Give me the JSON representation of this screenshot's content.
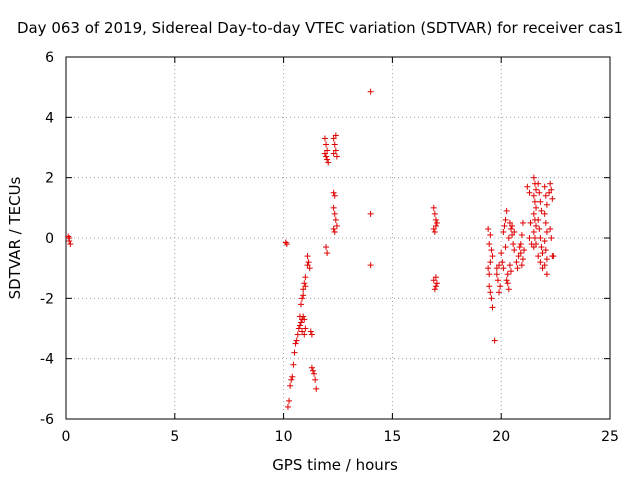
{
  "chart_data": {
    "type": "scatter",
    "title": "Day 063 of 2019, Sidereal Day-to-day VTEC variation (SDTVAR) for receiver cas1",
    "xlabel": "GPS time / hours",
    "ylabel": "SDTVAR / TECUs",
    "xlim": [
      0,
      25
    ],
    "ylim": [
      -6,
      6
    ],
    "xticks": [
      0,
      5,
      10,
      15,
      20,
      25
    ],
    "yticks": [
      -6,
      -4,
      -2,
      0,
      2,
      4,
      6
    ],
    "grid": true,
    "marker": "+",
    "color": "#e00000",
    "series": [
      {
        "name": "SDTVAR",
        "points": [
          [
            0.1,
            0.05
          ],
          [
            0.15,
            -0.1
          ],
          [
            0.2,
            -0.2
          ],
          [
            0.15,
            0.0
          ],
          [
            10.1,
            -0.15
          ],
          [
            10.15,
            -0.2
          ],
          [
            10.2,
            -5.6
          ],
          [
            10.25,
            -5.4
          ],
          [
            10.3,
            -4.9
          ],
          [
            10.35,
            -4.7
          ],
          [
            10.4,
            -4.6
          ],
          [
            10.45,
            -4.2
          ],
          [
            10.5,
            -3.8
          ],
          [
            10.55,
            -3.5
          ],
          [
            10.6,
            -3.4
          ],
          [
            10.65,
            -3.2
          ],
          [
            10.7,
            -3.0
          ],
          [
            10.75,
            -2.9
          ],
          [
            10.8,
            -2.8
          ],
          [
            10.85,
            -2.7
          ],
          [
            10.9,
            -2.6
          ],
          [
            10.95,
            -2.7
          ],
          [
            11.0,
            -3.0
          ],
          [
            10.75,
            -2.6
          ],
          [
            10.85,
            -3.1
          ],
          [
            10.95,
            -3.2
          ],
          [
            10.8,
            -2.2
          ],
          [
            10.85,
            -2.0
          ],
          [
            10.9,
            -1.7
          ],
          [
            10.95,
            -1.5
          ],
          [
            11.0,
            -1.3
          ],
          [
            10.9,
            -1.9
          ],
          [
            11.0,
            -1.6
          ],
          [
            11.1,
            -0.6
          ],
          [
            11.15,
            -0.8
          ],
          [
            11.2,
            -1.0
          ],
          [
            11.1,
            -0.9
          ],
          [
            11.25,
            -3.1
          ],
          [
            11.3,
            -3.2
          ],
          [
            11.3,
            -4.3
          ],
          [
            11.35,
            -4.4
          ],
          [
            11.4,
            -4.5
          ],
          [
            11.45,
            -4.7
          ],
          [
            11.5,
            -5.0
          ],
          [
            11.9,
            3.3
          ],
          [
            11.95,
            3.1
          ],
          [
            12.0,
            2.9
          ],
          [
            11.95,
            2.7
          ],
          [
            12.0,
            2.6
          ],
          [
            12.05,
            2.5
          ],
          [
            11.9,
            2.8
          ],
          [
            11.95,
            -0.3
          ],
          [
            12.0,
            -0.5
          ],
          [
            12.3,
            3.3
          ],
          [
            12.35,
            3.1
          ],
          [
            12.4,
            2.9
          ],
          [
            12.45,
            2.7
          ],
          [
            12.3,
            2.8
          ],
          [
            12.4,
            3.4
          ],
          [
            12.3,
            1.5
          ],
          [
            12.35,
            1.4
          ],
          [
            12.3,
            1.0
          ],
          [
            12.35,
            0.8
          ],
          [
            12.4,
            0.6
          ],
          [
            12.45,
            0.4
          ],
          [
            12.3,
            0.3
          ],
          [
            12.35,
            0.2
          ],
          [
            14.0,
            4.85
          ],
          [
            14.0,
            0.8
          ],
          [
            14.0,
            -0.9
          ],
          [
            16.9,
            1.0
          ],
          [
            16.95,
            0.8
          ],
          [
            17.0,
            0.6
          ],
          [
            17.05,
            0.5
          ],
          [
            16.9,
            0.3
          ],
          [
            17.0,
            0.4
          ],
          [
            16.95,
            0.2
          ],
          [
            17.0,
            -1.3
          ],
          [
            17.05,
            -1.5
          ],
          [
            16.95,
            -1.7
          ],
          [
            17.0,
            -1.6
          ],
          [
            16.9,
            -1.4
          ],
          [
            19.4,
            -1.0
          ],
          [
            19.45,
            -1.2
          ],
          [
            19.5,
            -0.8
          ],
          [
            19.55,
            -0.4
          ],
          [
            19.6,
            -0.6
          ],
          [
            19.4,
            0.3
          ],
          [
            19.5,
            0.1
          ],
          [
            19.45,
            -0.2
          ],
          [
            19.5,
            -1.8
          ],
          [
            19.55,
            -2.0
          ],
          [
            19.6,
            -2.3
          ],
          [
            19.45,
            -1.6
          ],
          [
            19.7,
            -3.4
          ],
          [
            19.8,
            -1.0
          ],
          [
            19.85,
            -1.4
          ],
          [
            19.9,
            -1.8
          ],
          [
            19.95,
            -1.6
          ],
          [
            19.8,
            -1.2
          ],
          [
            19.9,
            -0.9
          ],
          [
            20.0,
            -0.5
          ],
          [
            20.05,
            -0.8
          ],
          [
            20.1,
            -1.0
          ],
          [
            20.15,
            0.4
          ],
          [
            20.2,
            0.6
          ],
          [
            20.25,
            0.9
          ],
          [
            20.1,
            0.2
          ],
          [
            20.2,
            -0.3
          ],
          [
            20.3,
            -1.5
          ],
          [
            20.35,
            -1.7
          ],
          [
            20.25,
            -1.4
          ],
          [
            20.3,
            -1.2
          ],
          [
            20.4,
            -0.9
          ],
          [
            20.45,
            -1.1
          ],
          [
            20.4,
            0.5
          ],
          [
            20.45,
            0.3
          ],
          [
            20.5,
            0.1
          ],
          [
            20.55,
            -0.2
          ],
          [
            20.6,
            -0.4
          ],
          [
            20.5,
            0.4
          ],
          [
            20.35,
            0.0
          ],
          [
            20.6,
            0.2
          ],
          [
            20.7,
            -0.8
          ],
          [
            20.75,
            -1.0
          ],
          [
            20.8,
            -0.6
          ],
          [
            20.85,
            -0.3
          ],
          [
            20.9,
            -0.5
          ],
          [
            20.95,
            0.1
          ],
          [
            21.0,
            0.5
          ],
          [
            20.9,
            -0.2
          ],
          [
            21.0,
            -0.7
          ],
          [
            20.95,
            -0.9
          ],
          [
            21.05,
            -0.4
          ],
          [
            21.2,
            1.7
          ],
          [
            21.3,
            1.5
          ],
          [
            21.35,
            0.5
          ],
          [
            21.4,
            -0.2
          ],
          [
            21.3,
            0.0
          ],
          [
            21.5,
            2.0
          ],
          [
            21.55,
            1.8
          ],
          [
            21.6,
            1.6
          ],
          [
            21.5,
            1.4
          ],
          [
            21.55,
            1.2
          ],
          [
            21.6,
            1.0
          ],
          [
            21.5,
            0.8
          ],
          [
            21.55,
            0.6
          ],
          [
            21.6,
            0.4
          ],
          [
            21.5,
            0.2
          ],
          [
            21.55,
            0.0
          ],
          [
            21.6,
            -0.2
          ],
          [
            21.5,
            -0.3
          ],
          [
            21.7,
            1.8
          ],
          [
            21.75,
            1.5
          ],
          [
            21.8,
            1.2
          ],
          [
            21.85,
            0.9
          ],
          [
            21.7,
            0.6
          ],
          [
            21.75,
            0.3
          ],
          [
            21.8,
            0.0
          ],
          [
            21.85,
            -0.3
          ],
          [
            21.9,
            -0.5
          ],
          [
            21.7,
            -0.6
          ],
          [
            21.8,
            -0.8
          ],
          [
            21.9,
            -1.0
          ],
          [
            22.0,
            1.7
          ],
          [
            22.05,
            1.4
          ],
          [
            22.1,
            1.1
          ],
          [
            22.0,
            0.8
          ],
          [
            22.05,
            0.5
          ],
          [
            22.1,
            0.2
          ],
          [
            22.0,
            -0.1
          ],
          [
            22.05,
            -0.4
          ],
          [
            22.1,
            -0.7
          ],
          [
            22.0,
            -0.9
          ],
          [
            22.1,
            -1.2
          ],
          [
            22.2,
            1.5
          ],
          [
            22.25,
            1.8
          ],
          [
            22.3,
            1.6
          ],
          [
            22.35,
            1.3
          ],
          [
            22.25,
            0.3
          ],
          [
            22.3,
            0.0
          ],
          [
            22.35,
            -0.6
          ],
          [
            22.4,
            -0.6
          ]
        ]
      }
    ]
  }
}
